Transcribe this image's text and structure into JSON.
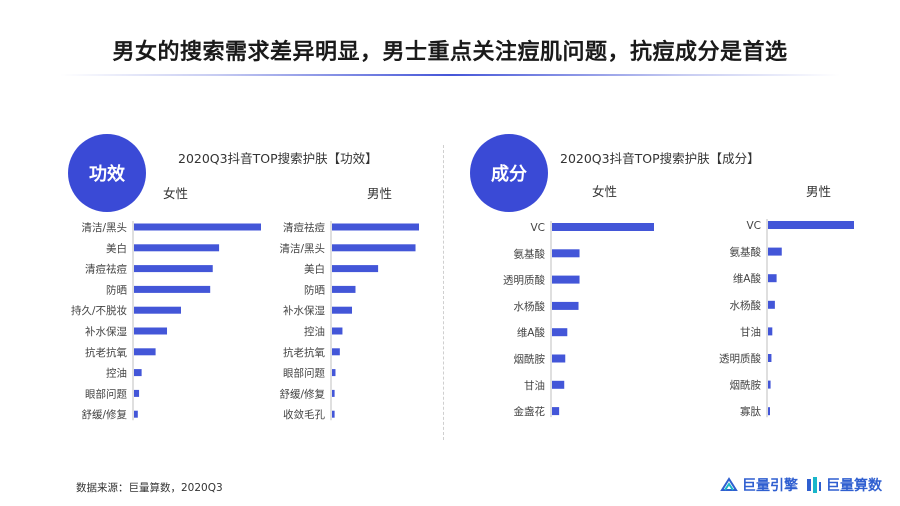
{
  "header": {
    "title": "男女的搜索需求差异明显，男士重点关注痘肌问题，抗痘成分是首选"
  },
  "panels": {
    "efficacy": {
      "badge": "功效",
      "subtitle": "2020Q3抖音TOP搜索护肤【功效】",
      "female_label": "女性",
      "male_label": "男性"
    },
    "ingredient": {
      "badge": "成分",
      "subtitle": "2020Q3抖音TOP搜索护肤【成分】",
      "female_label": "女性",
      "male_label": "男性"
    }
  },
  "footer": {
    "source": "数据来源：巨量算数，2020Q3",
    "brand_1": "巨量引擎",
    "brand_2": "巨量算数"
  },
  "colors": {
    "accent": "#3a4ad6",
    "bar": "#4356d8"
  },
  "chart_data": [
    {
      "type": "bar",
      "orientation": "horizontal",
      "panel": "efficacy",
      "series_label": "女性",
      "categories": [
        "清洁/黑头",
        "美白",
        "清痘祛痘",
        "防晒",
        "持久/不脱妆",
        "补水保湿",
        "抗老抗氧",
        "控油",
        "眼部问题",
        "舒缓/修复"
      ],
      "values": [
        100,
        67,
        62,
        60,
        37,
        26,
        17,
        6,
        4,
        3
      ],
      "xlim": [
        0,
        100
      ]
    },
    {
      "type": "bar",
      "orientation": "horizontal",
      "panel": "efficacy",
      "series_label": "男性",
      "categories": [
        "清痘祛痘",
        "清洁/黑头",
        "美白",
        "防晒",
        "补水保湿",
        "控油",
        "抗老抗氧",
        "眼部问题",
        "舒缓/修复",
        "收敛毛孔"
      ],
      "values": [
        100,
        96,
        53,
        27,
        23,
        12,
        9,
        4,
        3,
        3
      ],
      "xlim": [
        0,
        100
      ]
    },
    {
      "type": "bar",
      "orientation": "horizontal",
      "panel": "ingredient",
      "series_label": "女性",
      "categories": [
        "VC",
        "氨基酸",
        "透明质酸",
        "水杨酸",
        "维A酸",
        "烟酰胺",
        "甘油",
        "金盏花"
      ],
      "values": [
        100,
        27,
        27,
        26,
        15,
        13,
        12,
        7
      ],
      "xlim": [
        0,
        100
      ]
    },
    {
      "type": "bar",
      "orientation": "horizontal",
      "panel": "ingredient",
      "series_label": "男性",
      "categories": [
        "VC",
        "氨基酸",
        "维A酸",
        "水杨酸",
        "甘油",
        "透明质酸",
        "烟酰胺",
        "寡肽"
      ],
      "values": [
        100,
        16,
        10,
        8,
        5,
        4,
        3,
        2
      ],
      "xlim": [
        0,
        100
      ]
    }
  ]
}
